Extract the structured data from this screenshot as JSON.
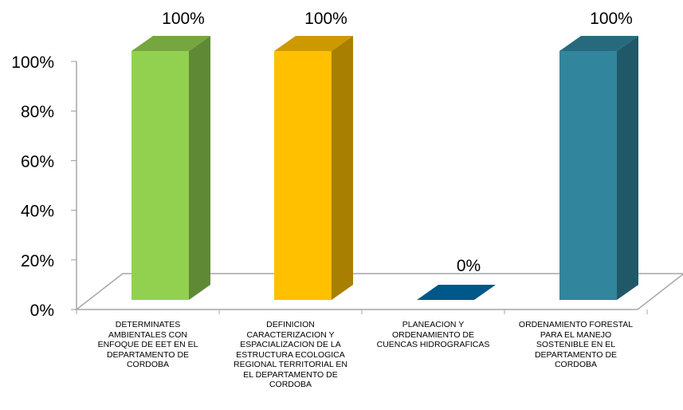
{
  "chart_data": {
    "type": "bar",
    "style": "3d-column",
    "categories": [
      "DETERMINATES AMBIENTALES CON ENFOQUE DE EET EN EL DEPARTAMENTO DE CORDOBA",
      "DEFINICION CARACTERIZACION Y ESPACIALIZACION DE LA ESTRUCTURA ECOLOGICA REGIONAL TERRITORIAL EN EL DEPARTAMENTO DE CORDOBA",
      "PLANEACION Y ORDENAMIENTO DE CUENCAS HIDROGRAFICAS",
      "ORDENAMIENTO FORESTAL PARA EL MANEJO SOSTENIBLE EN EL DEPARTAMENTO DE CORDOBA"
    ],
    "category_lines": [
      [
        "DETERMINATES",
        "AMBIENTALES CON",
        "ENFOQUE DE EET EN EL",
        "DEPARTAMENTO DE",
        "CORDOBA"
      ],
      [
        "DEFINICION",
        "CARACTERIZACION Y",
        "ESPACIALIZACION DE LA",
        "ESTRUCTURA ECOLOGICA",
        "REGIONAL TERRITORIAL EN",
        "EL DEPARTAMENTO DE",
        "CORDOBA"
      ],
      [
        "PLANEACION Y",
        "ORDENAMIENTO DE",
        "CUENCAS HIDROGRAFICAS"
      ],
      [
        "ORDENAMIENTO FORESTAL",
        "PARA EL MANEJO",
        "SOSTENIBLE EN EL",
        "DEPARTAMENTO DE",
        "CORDOBA"
      ]
    ],
    "values": [
      100,
      100,
      0,
      100
    ],
    "data_labels": [
      "100%",
      "100%",
      "0%",
      "100%"
    ],
    "colors": [
      "#92d050",
      "#ffc000",
      "#00578a",
      "#31859c"
    ],
    "ylim": [
      0,
      100
    ],
    "y_ticks": [
      0,
      20,
      40,
      60,
      80,
      100
    ],
    "y_tick_labels": [
      "0%",
      "20%",
      "40%",
      "60%",
      "80%",
      "100%"
    ],
    "title": "",
    "xlabel": "",
    "ylabel": "",
    "legend": "none",
    "grid": false
  }
}
